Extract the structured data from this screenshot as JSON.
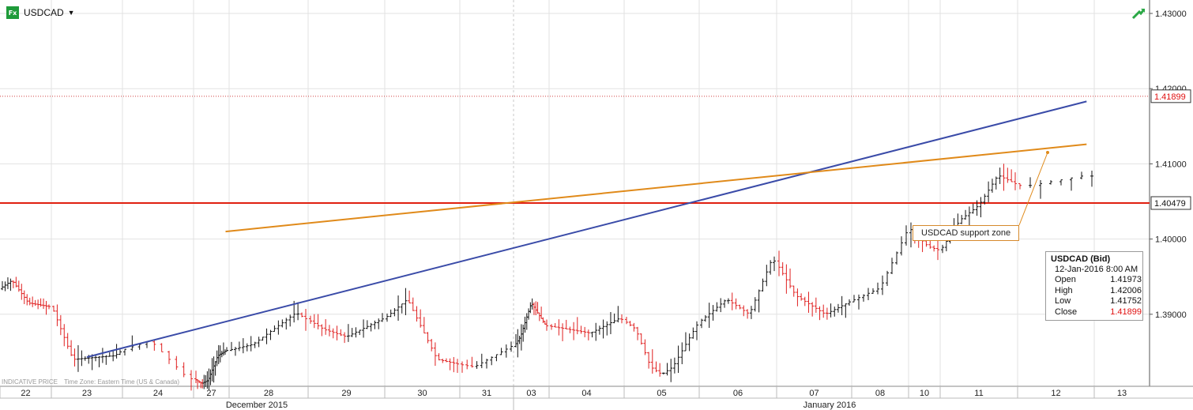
{
  "symbol": {
    "name": "USDCAD",
    "icon": "fx-icon"
  },
  "footer": {
    "indicative": "INDICATIVE PRICE",
    "timezone": "Time Zone: Eastern Time (US & Canada)"
  },
  "tooltip": {
    "title": "USDCAD (Bid)",
    "date": "12-Jan-2016 8:00 AM",
    "rows": [
      {
        "label": "Open",
        "value": "1.41973"
      },
      {
        "label": "High",
        "value": "1.42006"
      },
      {
        "label": "Low",
        "value": "1.41752"
      },
      {
        "label": "Close",
        "value": "1.41899"
      }
    ]
  },
  "annotation": {
    "text": "USDCAD support zone"
  },
  "colors": {
    "up": "#111111",
    "down": "#e02020",
    "support": "#e02010",
    "trend_blue": "#3a4ba8",
    "trend_orange": "#e08a1a",
    "grid": "#e2e2e2"
  },
  "chart_data": {
    "type": "candlestick",
    "symbol": "USDCAD",
    "ylim": [
      1.38,
      1.43
    ],
    "y_ticks": [
      "1.39000",
      "1.40000",
      "1.41000",
      "1.42000",
      "1.43000"
    ],
    "price_labels": [
      {
        "value": "1.41899",
        "price": 1.41899,
        "style": "dotted",
        "color": "#e02020"
      },
      {
        "value": "1.40479",
        "price": 1.40479,
        "style": "solid",
        "color": "#e02010"
      }
    ],
    "days": [
      {
        "label": "22",
        "bars": 18
      },
      {
        "label": "23",
        "bars": 20
      },
      {
        "label": "24",
        "bars": 10
      },
      {
        "label": "27",
        "bars": 20
      },
      {
        "label": "28",
        "bars": 20
      },
      {
        "label": "29",
        "bars": 20
      },
      {
        "label": "30",
        "bars": 20
      },
      {
        "label": "31",
        "bars": 11
      },
      {
        "label": "03",
        "bars": 18
      },
      {
        "label": "04",
        "bars": 20
      },
      {
        "label": "05",
        "bars": 20
      },
      {
        "label": "06",
        "bars": 20
      },
      {
        "label": "07",
        "bars": 20
      },
      {
        "label": "08",
        "bars": 12
      },
      {
        "label": "10",
        "bars": 8
      },
      {
        "label": "11",
        "bars": 20
      },
      {
        "label": "12",
        "bars": 8
      },
      {
        "label": "13",
        "bars": 0
      }
    ],
    "months": [
      "December 2015",
      "January 2016"
    ],
    "price_path": [
      [
        0,
        1.3935
      ],
      [
        4,
        1.3945
      ],
      [
        10,
        1.3915
      ],
      [
        18,
        1.391
      ],
      [
        24,
        1.384
      ],
      [
        36,
        1.3845
      ],
      [
        42,
        1.3865
      ],
      [
        47,
        1.3815
      ],
      [
        52,
        1.3808
      ],
      [
        56,
        1.3812
      ],
      [
        62,
        1.3845
      ],
      [
        74,
        1.386
      ],
      [
        85,
        1.3902
      ],
      [
        92,
        1.388
      ],
      [
        98,
        1.387
      ],
      [
        108,
        1.3895
      ],
      [
        114,
        1.392
      ],
      [
        122,
        1.384
      ],
      [
        131,
        1.383
      ],
      [
        142,
        1.387
      ],
      [
        148,
        1.3915
      ],
      [
        156,
        1.3885
      ],
      [
        168,
        1.3875
      ],
      [
        176,
        1.3895
      ],
      [
        180,
        1.388
      ],
      [
        184,
        1.383
      ],
      [
        187,
        1.382
      ],
      [
        190,
        1.383
      ],
      [
        197,
        1.389
      ],
      [
        204,
        1.392
      ],
      [
        210,
        1.39
      ],
      [
        216,
        1.3975
      ],
      [
        222,
        1.3925
      ],
      [
        230,
        1.39
      ],
      [
        236,
        1.3915
      ],
      [
        243,
        1.3935
      ],
      [
        249,
        1.4015
      ],
      [
        254,
        1.399
      ],
      [
        257,
        1.3985
      ],
      [
        262,
        1.4025
      ],
      [
        267,
        1.4045
      ],
      [
        272,
        1.4085
      ],
      [
        278,
        1.407
      ],
      [
        284,
        1.4085
      ],
      [
        292,
        1.4065
      ],
      [
        298,
        1.4115
      ],
      [
        303,
        1.416
      ],
      [
        307,
        1.413
      ],
      [
        310,
        1.4065
      ],
      [
        314,
        1.4055
      ],
      [
        320,
        1.4095
      ],
      [
        324,
        1.4115
      ],
      [
        330,
        1.4075
      ],
      [
        338,
        1.408
      ],
      [
        344,
        1.4115
      ],
      [
        350,
        1.406
      ],
      [
        356,
        1.413
      ],
      [
        362,
        1.415
      ],
      [
        368,
        1.4155
      ],
      [
        372,
        1.418
      ],
      [
        377,
        1.4165
      ],
      [
        382,
        1.416
      ],
      [
        388,
        1.4175
      ],
      [
        391,
        1.4125
      ],
      [
        395,
        1.41
      ],
      [
        399,
        1.408
      ],
      [
        403,
        1.408
      ],
      [
        405,
        1.412
      ],
      [
        408,
        1.419
      ],
      [
        411,
        1.4235
      ],
      [
        416,
        1.422
      ],
      [
        422,
        1.421
      ],
      [
        428,
        1.4215
      ],
      [
        432,
        1.4225
      ],
      [
        435,
        1.424
      ],
      [
        437,
        1.4255
      ],
      [
        439,
        1.424
      ],
      [
        442,
        1.4215
      ],
      [
        444,
        1.4205
      ],
      [
        446,
        1.419
      ]
    ],
    "trendlines": [
      {
        "color": "blue",
        "from": [
          1.5,
          1.3843
        ],
        "to": [
          16.9,
          1.4183
        ]
      },
      {
        "color": "orange",
        "from": [
          3.9,
          1.401
        ],
        "to": [
          16.9,
          1.4126
        ]
      }
    ],
    "support_level": 1.40479,
    "current_price": 1.41899
  }
}
